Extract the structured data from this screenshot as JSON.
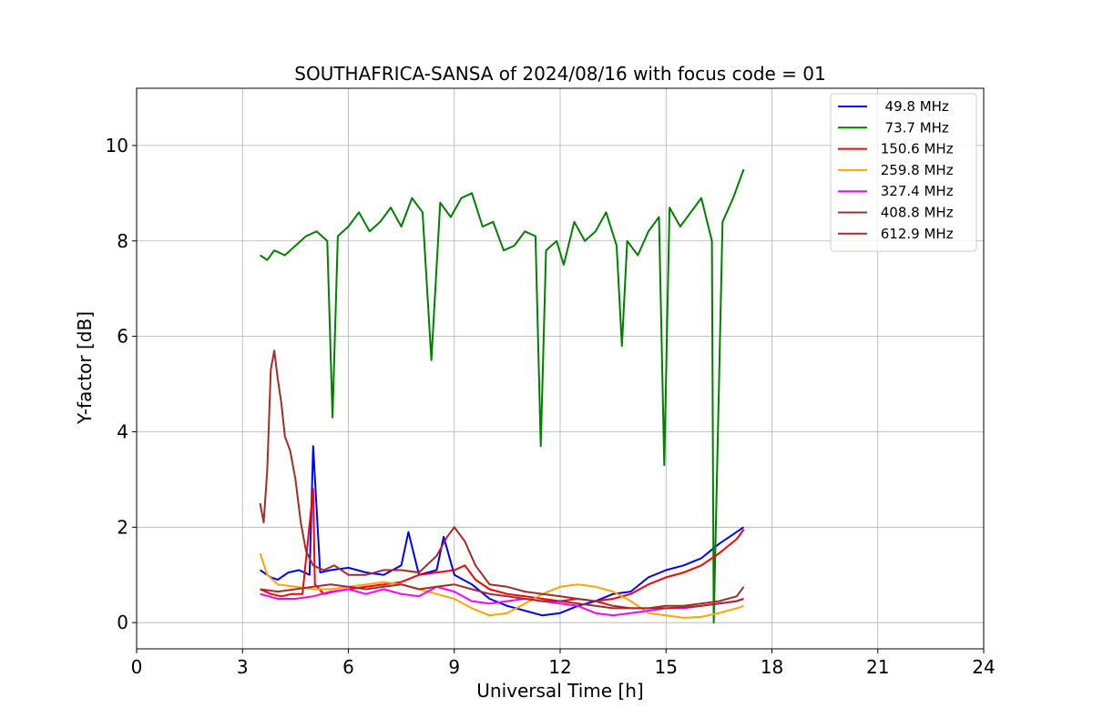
{
  "chart_data": {
    "type": "line",
    "title": "SOUTHAFRICA-SANSA of 2024/08/16 with focus code = 01",
    "xlabel": "Universal Time [h]",
    "ylabel": "Y-factor [dB]",
    "xlim": [
      0,
      24
    ],
    "ylim": [
      -0.55,
      11.2
    ],
    "xticks": [
      0,
      3,
      6,
      9,
      12,
      15,
      18,
      21,
      24
    ],
    "yticks": [
      0,
      2,
      4,
      6,
      8,
      10
    ],
    "xtick_labels": [
      "0",
      "3",
      "6",
      "9",
      "12",
      "15",
      "18",
      "21",
      "24"
    ],
    "ytick_labels": [
      "0",
      "2",
      "4",
      "6",
      "8",
      "10"
    ],
    "grid": true,
    "legend_position": "top-right",
    "series": [
      {
        "name": "  49.8 MHz",
        "color": "#0000ff",
        "x": [
          3.5,
          3.8,
          4.0,
          4.3,
          4.6,
          4.9,
          5.0,
          5.2,
          5.5,
          6.0,
          6.5,
          7.0,
          7.5,
          7.7,
          8.0,
          8.5,
          8.7,
          9.0,
          9.5,
          10.0,
          10.5,
          11.0,
          11.5,
          12.0,
          12.5,
          13.0,
          13.5,
          14.0,
          14.5,
          15.0,
          15.5,
          16.0,
          16.5,
          17.0,
          17.2
        ],
        "y": [
          1.1,
          0.95,
          0.9,
          1.05,
          1.1,
          1.0,
          3.7,
          1.05,
          1.1,
          1.15,
          1.05,
          1.0,
          1.2,
          1.9,
          1.0,
          1.1,
          1.8,
          1.0,
          0.8,
          0.5,
          0.35,
          0.25,
          0.15,
          0.2,
          0.35,
          0.45,
          0.6,
          0.65,
          0.95,
          1.1,
          1.2,
          1.35,
          1.65,
          1.9,
          2.0
        ]
      },
      {
        "name": "  73.7 MHz",
        "color": "#008000",
        "x": [
          3.5,
          3.7,
          3.9,
          4.2,
          4.5,
          4.8,
          5.1,
          5.4,
          5.55,
          5.7,
          6.0,
          6.3,
          6.6,
          6.9,
          7.2,
          7.5,
          7.8,
          8.1,
          8.35,
          8.6,
          8.9,
          9.2,
          9.5,
          9.8,
          10.1,
          10.4,
          10.7,
          11.0,
          11.3,
          11.45,
          11.6,
          11.9,
          12.1,
          12.4,
          12.7,
          13.0,
          13.3,
          13.6,
          13.75,
          13.9,
          14.2,
          14.5,
          14.8,
          14.95,
          15.1,
          15.4,
          15.7,
          16.0,
          16.3,
          16.35,
          16.6,
          16.9,
          17.2
        ],
        "y": [
          7.7,
          7.6,
          7.8,
          7.7,
          7.9,
          8.1,
          8.2,
          8.0,
          4.3,
          8.1,
          8.3,
          8.6,
          8.2,
          8.4,
          8.7,
          8.3,
          8.9,
          8.6,
          5.5,
          8.8,
          8.5,
          8.9,
          9.0,
          8.3,
          8.4,
          7.8,
          7.9,
          8.2,
          8.1,
          3.7,
          7.8,
          8.0,
          7.5,
          8.4,
          8.0,
          8.2,
          8.6,
          7.9,
          5.8,
          8.0,
          7.7,
          8.2,
          8.5,
          3.3,
          8.7,
          8.3,
          8.6,
          8.9,
          8.0,
          0.0,
          8.4,
          8.9,
          9.5
        ]
      },
      {
        "name": " 150.6 MHz",
        "color": "#ff0000",
        "x": [
          3.5,
          3.8,
          4.1,
          4.4,
          4.7,
          5.0,
          5.05,
          5.3,
          5.6,
          6.0,
          6.5,
          7.0,
          7.5,
          8.0,
          8.5,
          9.0,
          9.3,
          9.6,
          10.0,
          10.5,
          11.0,
          11.5,
          12.0,
          12.5,
          13.0,
          13.5,
          14.0,
          14.5,
          15.0,
          15.5,
          16.0,
          16.5,
          17.0,
          17.2
        ],
        "y": [
          0.7,
          0.6,
          0.55,
          0.6,
          0.6,
          2.8,
          0.8,
          0.6,
          0.65,
          0.7,
          0.75,
          0.8,
          0.85,
          1.0,
          1.05,
          1.1,
          1.2,
          0.9,
          0.7,
          0.6,
          0.55,
          0.5,
          0.45,
          0.5,
          0.45,
          0.5,
          0.6,
          0.8,
          0.95,
          1.05,
          1.2,
          1.45,
          1.75,
          1.95
        ]
      },
      {
        "name": " 259.8 MHz",
        "color": "#ffa500",
        "x": [
          3.5,
          3.7,
          4.0,
          4.5,
          5.0,
          5.5,
          6.0,
          6.5,
          7.0,
          7.5,
          8.0,
          8.5,
          9.0,
          9.5,
          10.0,
          10.5,
          11.0,
          11.5,
          12.0,
          12.5,
          13.0,
          13.5,
          14.0,
          14.5,
          15.0,
          15.5,
          16.0,
          16.5,
          17.0,
          17.2
        ],
        "y": [
          1.45,
          1.0,
          0.8,
          0.75,
          0.7,
          0.7,
          0.75,
          0.8,
          0.85,
          0.8,
          0.7,
          0.6,
          0.5,
          0.3,
          0.15,
          0.2,
          0.4,
          0.6,
          0.75,
          0.8,
          0.75,
          0.65,
          0.45,
          0.2,
          0.15,
          0.1,
          0.12,
          0.2,
          0.3,
          0.35
        ]
      },
      {
        "name": " 327.4 MHz",
        "color": "#ff00ff",
        "x": [
          3.5,
          4.0,
          4.5,
          5.0,
          5.5,
          6.0,
          6.5,
          7.0,
          7.5,
          8.0,
          8.5,
          9.0,
          9.5,
          10.0,
          10.5,
          11.0,
          11.5,
          12.0,
          12.5,
          13.0,
          13.5,
          14.0,
          14.5,
          15.0,
          15.5,
          16.0,
          16.5,
          17.0,
          17.2
        ],
        "y": [
          0.6,
          0.5,
          0.5,
          0.55,
          0.65,
          0.7,
          0.6,
          0.7,
          0.6,
          0.55,
          0.75,
          0.65,
          0.45,
          0.4,
          0.45,
          0.5,
          0.45,
          0.4,
          0.35,
          0.2,
          0.15,
          0.2,
          0.25,
          0.3,
          0.3,
          0.35,
          0.4,
          0.45,
          0.5
        ]
      },
      {
        "name": " 408.8 MHz",
        "color": "#a52a2a",
        "x": [
          3.5,
          3.6,
          3.7,
          3.8,
          3.9,
          4.0,
          4.1,
          4.2,
          4.35,
          4.5,
          4.65,
          4.8,
          5.0,
          5.3,
          5.6,
          6.0,
          6.5,
          7.0,
          7.5,
          8.0,
          8.5,
          8.8,
          9.0,
          9.3,
          9.6,
          10.0,
          10.5,
          11.0,
          11.5,
          12.0,
          12.5,
          13.0,
          13.5,
          14.0,
          14.5,
          15.0,
          15.5,
          16.0,
          16.5,
          17.0,
          17.2
        ],
        "y": [
          2.5,
          2.1,
          3.2,
          5.3,
          5.7,
          5.1,
          4.6,
          3.9,
          3.6,
          3.0,
          2.1,
          1.5,
          1.2,
          1.1,
          1.2,
          1.0,
          1.0,
          1.1,
          1.1,
          1.05,
          1.4,
          1.8,
          2.0,
          1.7,
          1.2,
          0.8,
          0.75,
          0.65,
          0.6,
          0.55,
          0.5,
          0.45,
          0.35,
          0.3,
          0.3,
          0.35,
          0.35,
          0.4,
          0.45,
          0.55,
          0.75
        ]
      },
      {
        "name": " 612.9 MHz",
        "color": "#a52a2a",
        "x": [
          3.5,
          4.0,
          4.5,
          5.0,
          5.5,
          6.0,
          6.5,
          7.0,
          7.5,
          8.0,
          8.5,
          9.0,
          9.5,
          10.0,
          10.5,
          11.0,
          11.5,
          12.0,
          12.5,
          13.0,
          13.5,
          14.0,
          14.5,
          15.0,
          15.5,
          16.0,
          16.5,
          17.0,
          17.2
        ],
        "y": [
          0.7,
          0.65,
          0.7,
          0.75,
          0.8,
          0.75,
          0.7,
          0.75,
          0.8,
          0.7,
          0.75,
          0.8,
          0.7,
          0.6,
          0.55,
          0.5,
          0.45,
          0.45,
          0.4,
          0.35,
          0.3,
          0.3,
          0.3,
          0.3,
          0.32,
          0.35,
          0.4,
          0.45,
          0.5
        ]
      }
    ]
  }
}
